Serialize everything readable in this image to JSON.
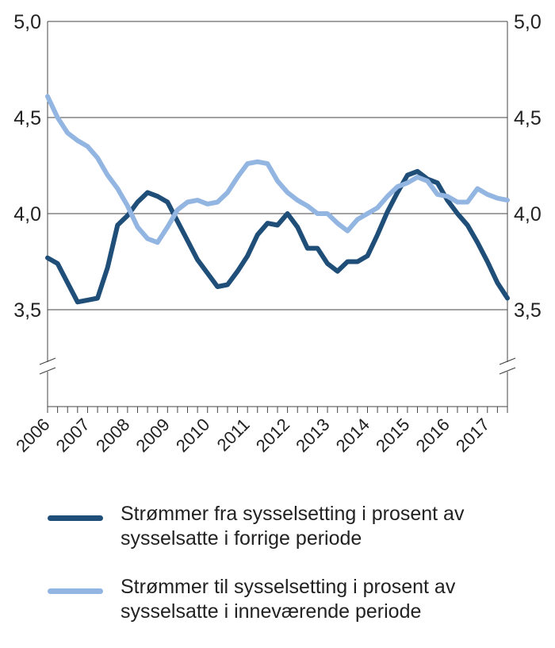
{
  "chart_data": {
    "type": "line",
    "title": "",
    "xlabel": "",
    "ylabel": "",
    "ylim": [
      3.0,
      5.0
    ],
    "y_ticks": [
      "5,0",
      "4,5",
      "4,0",
      "3,5"
    ],
    "y_tick_values": [
      5.0,
      4.5,
      4.0,
      3.5
    ],
    "axis_break": "y-axis below 3,5 on both sides",
    "secondary_y_axis": "mirrors left axis",
    "grid": "horizontal",
    "legend_position": "bottom",
    "x_tick_labels": [
      "2006",
      "2007",
      "2008",
      "2009",
      "2010",
      "2011",
      "2012",
      "2013",
      "2014",
      "2015",
      "2016",
      "2017"
    ],
    "x_step": "quarter",
    "series": [
      {
        "name": "Strømmer fra sysselsetting i prosent av sysselsatte i forrige periode",
        "color": "#1f4e79",
        "values": [
          3.77,
          3.74,
          3.64,
          3.54,
          3.55,
          3.56,
          3.72,
          3.94,
          3.99,
          4.06,
          4.11,
          4.09,
          4.06,
          3.96,
          3.86,
          3.76,
          3.69,
          3.62,
          3.63,
          3.7,
          3.78,
          3.89,
          3.95,
          3.94,
          4.0,
          3.93,
          3.82,
          3.82,
          3.74,
          3.7,
          3.75,
          3.75,
          3.78,
          3.89,
          4.01,
          4.11,
          4.2,
          4.22,
          4.18,
          4.16,
          4.07,
          4.0,
          3.94,
          3.85,
          3.75,
          3.64,
          3.56
        ]
      },
      {
        "name": "Strømmer til sysselsetting i prosent av sysselsatte i inneværende periode",
        "color": "#93b5e1",
        "values": [
          4.61,
          4.5,
          4.42,
          4.38,
          4.35,
          4.29,
          4.2,
          4.13,
          4.04,
          3.93,
          3.87,
          3.85,
          3.93,
          4.02,
          4.06,
          4.07,
          4.05,
          4.06,
          4.11,
          4.19,
          4.26,
          4.27,
          4.26,
          4.17,
          4.11,
          4.07,
          4.04,
          4.0,
          4.0,
          3.95,
          3.91,
          3.97,
          4.0,
          4.03,
          4.09,
          4.14,
          4.16,
          4.19,
          4.17,
          4.1,
          4.09,
          4.06,
          4.06,
          4.13,
          4.1,
          4.08,
          4.07
        ]
      }
    ]
  }
}
